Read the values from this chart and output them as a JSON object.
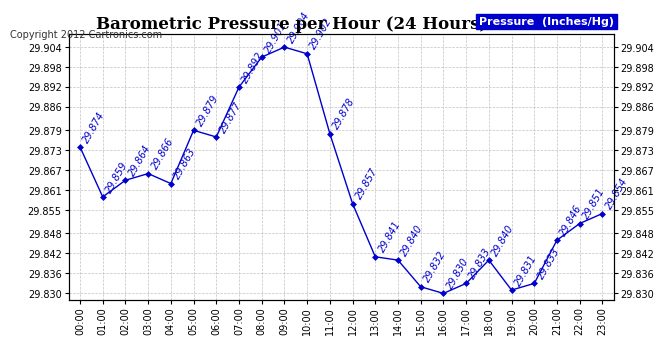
{
  "title": "Barometric Pressure per Hour (24 Hours) 20120824",
  "copyright": "Copyright 2012 Cartronics.com",
  "legend_label": "Pressure  (Inches/Hg)",
  "hours": [
    "00:00",
    "01:00",
    "02:00",
    "03:00",
    "04:00",
    "05:00",
    "06:00",
    "07:00",
    "08:00",
    "09:00",
    "10:00",
    "11:00",
    "12:00",
    "13:00",
    "14:00",
    "15:00",
    "16:00",
    "17:00",
    "18:00",
    "19:00",
    "20:00",
    "21:00",
    "22:00",
    "23:00"
  ],
  "values": [
    29.874,
    29.859,
    29.864,
    29.866,
    29.863,
    29.879,
    29.877,
    29.892,
    29.901,
    29.904,
    29.902,
    29.878,
    29.857,
    29.841,
    29.84,
    29.832,
    29.83,
    29.833,
    29.84,
    29.831,
    29.833,
    29.846,
    29.851,
    29.854
  ],
  "ylim": [
    29.828,
    29.908
  ],
  "yticks": [
    29.83,
    29.836,
    29.842,
    29.848,
    29.855,
    29.861,
    29.867,
    29.873,
    29.879,
    29.886,
    29.892,
    29.898,
    29.904
  ],
  "line_color": "#0000cc",
  "marker_color": "#0000cc",
  "bg_color": "#ffffff",
  "grid_color": "#bbbbbb",
  "title_fontsize": 12,
  "label_fontsize": 7,
  "annotation_fontsize": 7,
  "copyright_fontsize": 7,
  "legend_fontsize": 8
}
